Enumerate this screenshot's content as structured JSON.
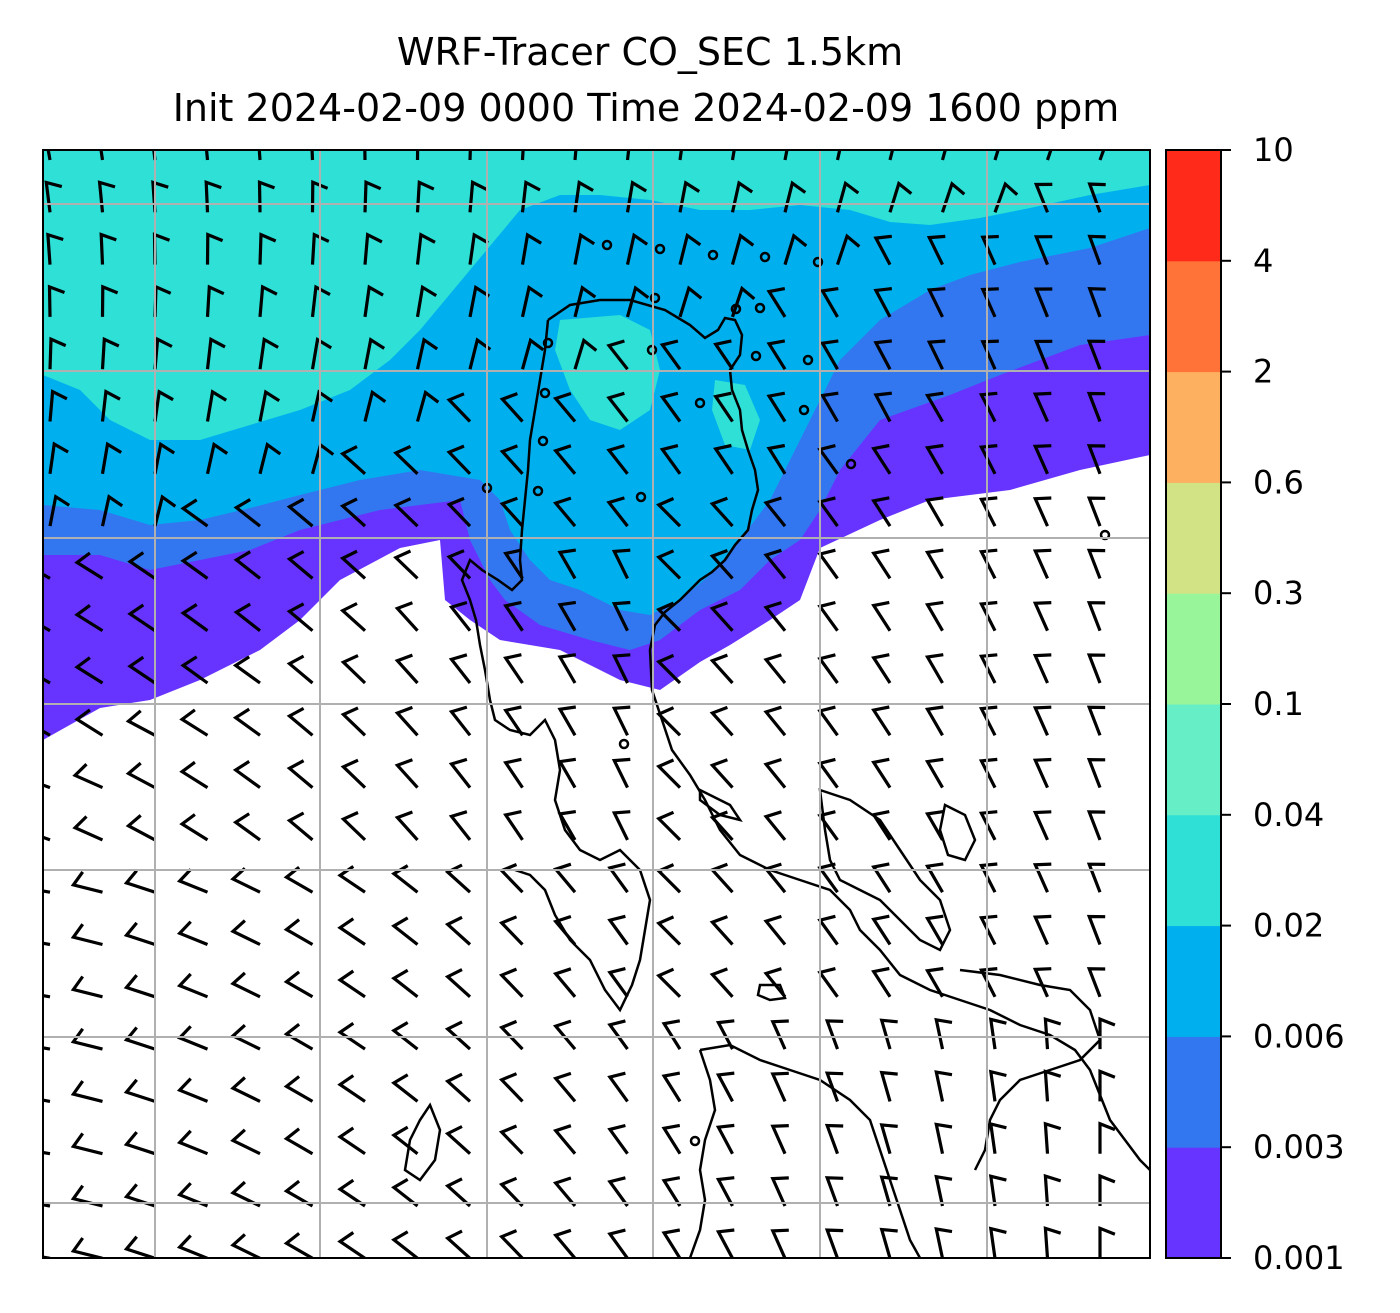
{
  "title": {
    "line1": "WRF-Tracer CO_SEC 1.5km",
    "line2": "Init 2024-02-09 0000 Time 2024-02-09 1600 ppm"
  },
  "colorbar": {
    "levels": [
      "0.001",
      "0.003",
      "0.006",
      "0.02",
      "0.04",
      "0.1",
      "0.3",
      "0.6",
      "2",
      "4",
      "10"
    ],
    "colors": [
      "#6633ff",
      "#3377f0",
      "#00b0ee",
      "#2ee0d6",
      "#66eec6",
      "#99f59a",
      "#d2e385",
      "#fdb060",
      "#ff7238",
      "#ff2a1a"
    ]
  },
  "map": {
    "grid": "on",
    "overlays": [
      "CO_SEC tracer concentration (filled contours)",
      "wind barbs",
      "coastlines"
    ]
  }
}
